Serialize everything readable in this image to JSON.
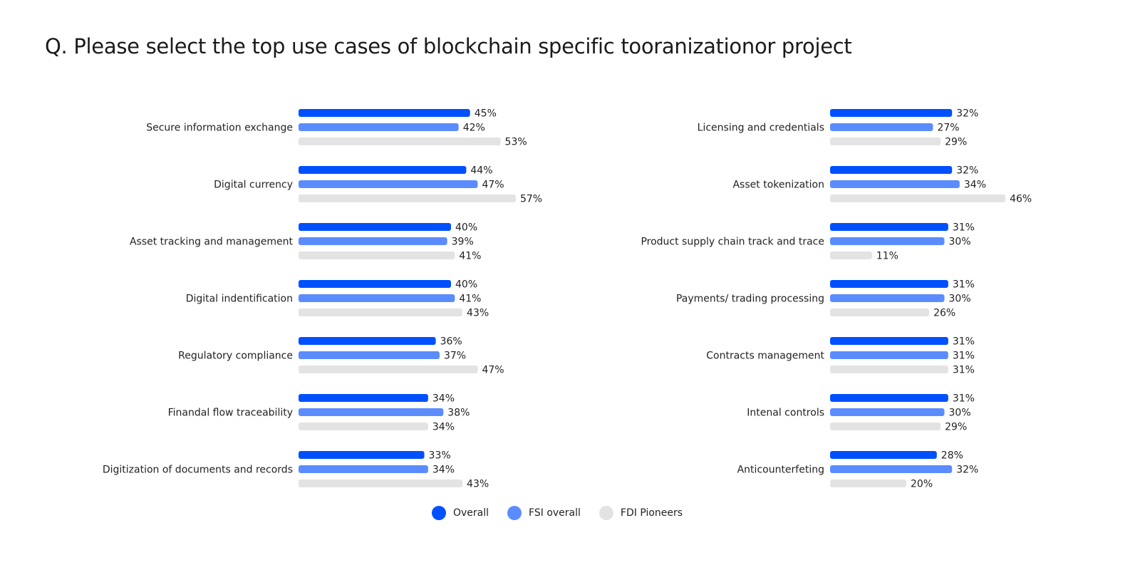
{
  "title": "Q. Please select the top use cases of blockchain specific tooranizationor project",
  "chart_data": {
    "type": "bar",
    "orientation": "horizontal",
    "title": "Q. Please select the top use cases of blockchain specific tooranizationor project",
    "unit": "%",
    "legend_position": "bottom",
    "grid": false,
    "series_names": [
      "Overall",
      "FSI overall",
      "FDI Pioneers"
    ],
    "colors": {
      "Overall": "#0050ff",
      "FSI overall": "#5b8cff",
      "FDI Pioneers": "#e3e3e3"
    },
    "panels": [
      {
        "categories": [
          "Secure information exchange",
          "Digital currency",
          "Asset tracking and management",
          "Digital indentification",
          "Regulatory compliance",
          "Finandal flow traceability",
          "Digitization of documents and records"
        ],
        "series": [
          {
            "name": "Overall",
            "values": [
              45,
              44,
              40,
              40,
              36,
              34,
              33
            ]
          },
          {
            "name": "FSI overall",
            "values": [
              42,
              47,
              39,
              41,
              37,
              38,
              34
            ]
          },
          {
            "name": "FDI Pioneers",
            "values": [
              53,
              57,
              41,
              43,
              47,
              34,
              43
            ]
          }
        ]
      },
      {
        "categories": [
          "Licensing and credentials",
          "Asset tokenization",
          "Product supply chain track and trace",
          "Payments/ trading processing",
          "Contracts management",
          "Intenal controls",
          "Anticounterfeting"
        ],
        "series": [
          {
            "name": "Overall",
            "values": [
              32,
              32,
              31,
              31,
              31,
              31,
              28
            ]
          },
          {
            "name": "FSI overall",
            "values": [
              27,
              34,
              30,
              30,
              31,
              30,
              32
            ]
          },
          {
            "name": "FDI Pioneers",
            "values": [
              29,
              46,
              11,
              26,
              31,
              29,
              20
            ]
          }
        ]
      }
    ]
  }
}
